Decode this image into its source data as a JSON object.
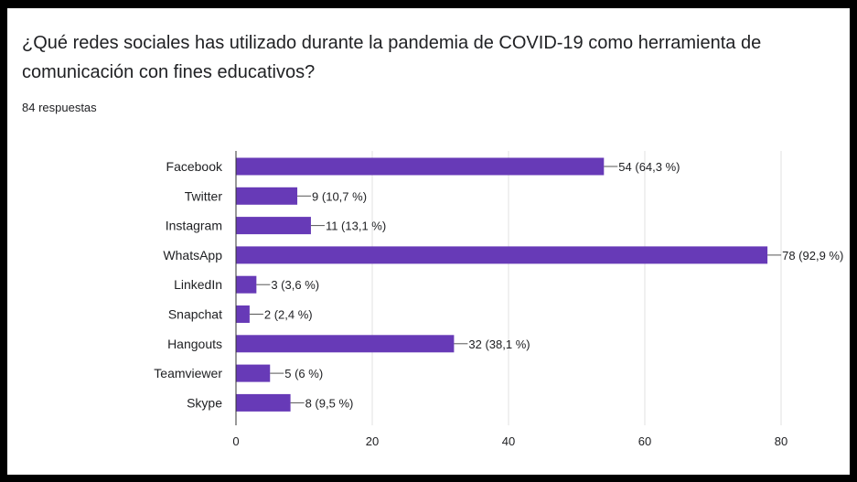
{
  "question": "¿Qué redes sociales has utilizado durante la pandemia de COVID-19 como herramienta de comunicación con fines educativos?",
  "responses": "84 respuestas",
  "colors": {
    "bar": "#673ab7",
    "grid": "#e0e0e0",
    "axis": "#333333",
    "text": "#202124"
  },
  "chart_data": {
    "type": "bar",
    "orientation": "horizontal",
    "categories": [
      "Facebook",
      "Twitter",
      "Instagram",
      "WhatsApp",
      "LinkedIn",
      "Snapchat",
      "Hangouts",
      "Teamviewer",
      "Skype"
    ],
    "values": [
      54,
      9,
      11,
      78,
      3,
      2,
      32,
      5,
      8
    ],
    "data_labels": [
      "54 (64,3 %)",
      "9 (10,7 %)",
      "11 (13,1 %)",
      "78 (92,9 %)",
      "3 (3,6 %)",
      "2 (2,4 %)",
      "32 (38,1 %)",
      "5 (6 %)",
      "8 (9,5 %)"
    ],
    "xlim": [
      0,
      80
    ],
    "xticks": [
      0,
      20,
      40,
      60,
      80
    ],
    "grid": true,
    "title": "",
    "xlabel": "",
    "ylabel": ""
  }
}
